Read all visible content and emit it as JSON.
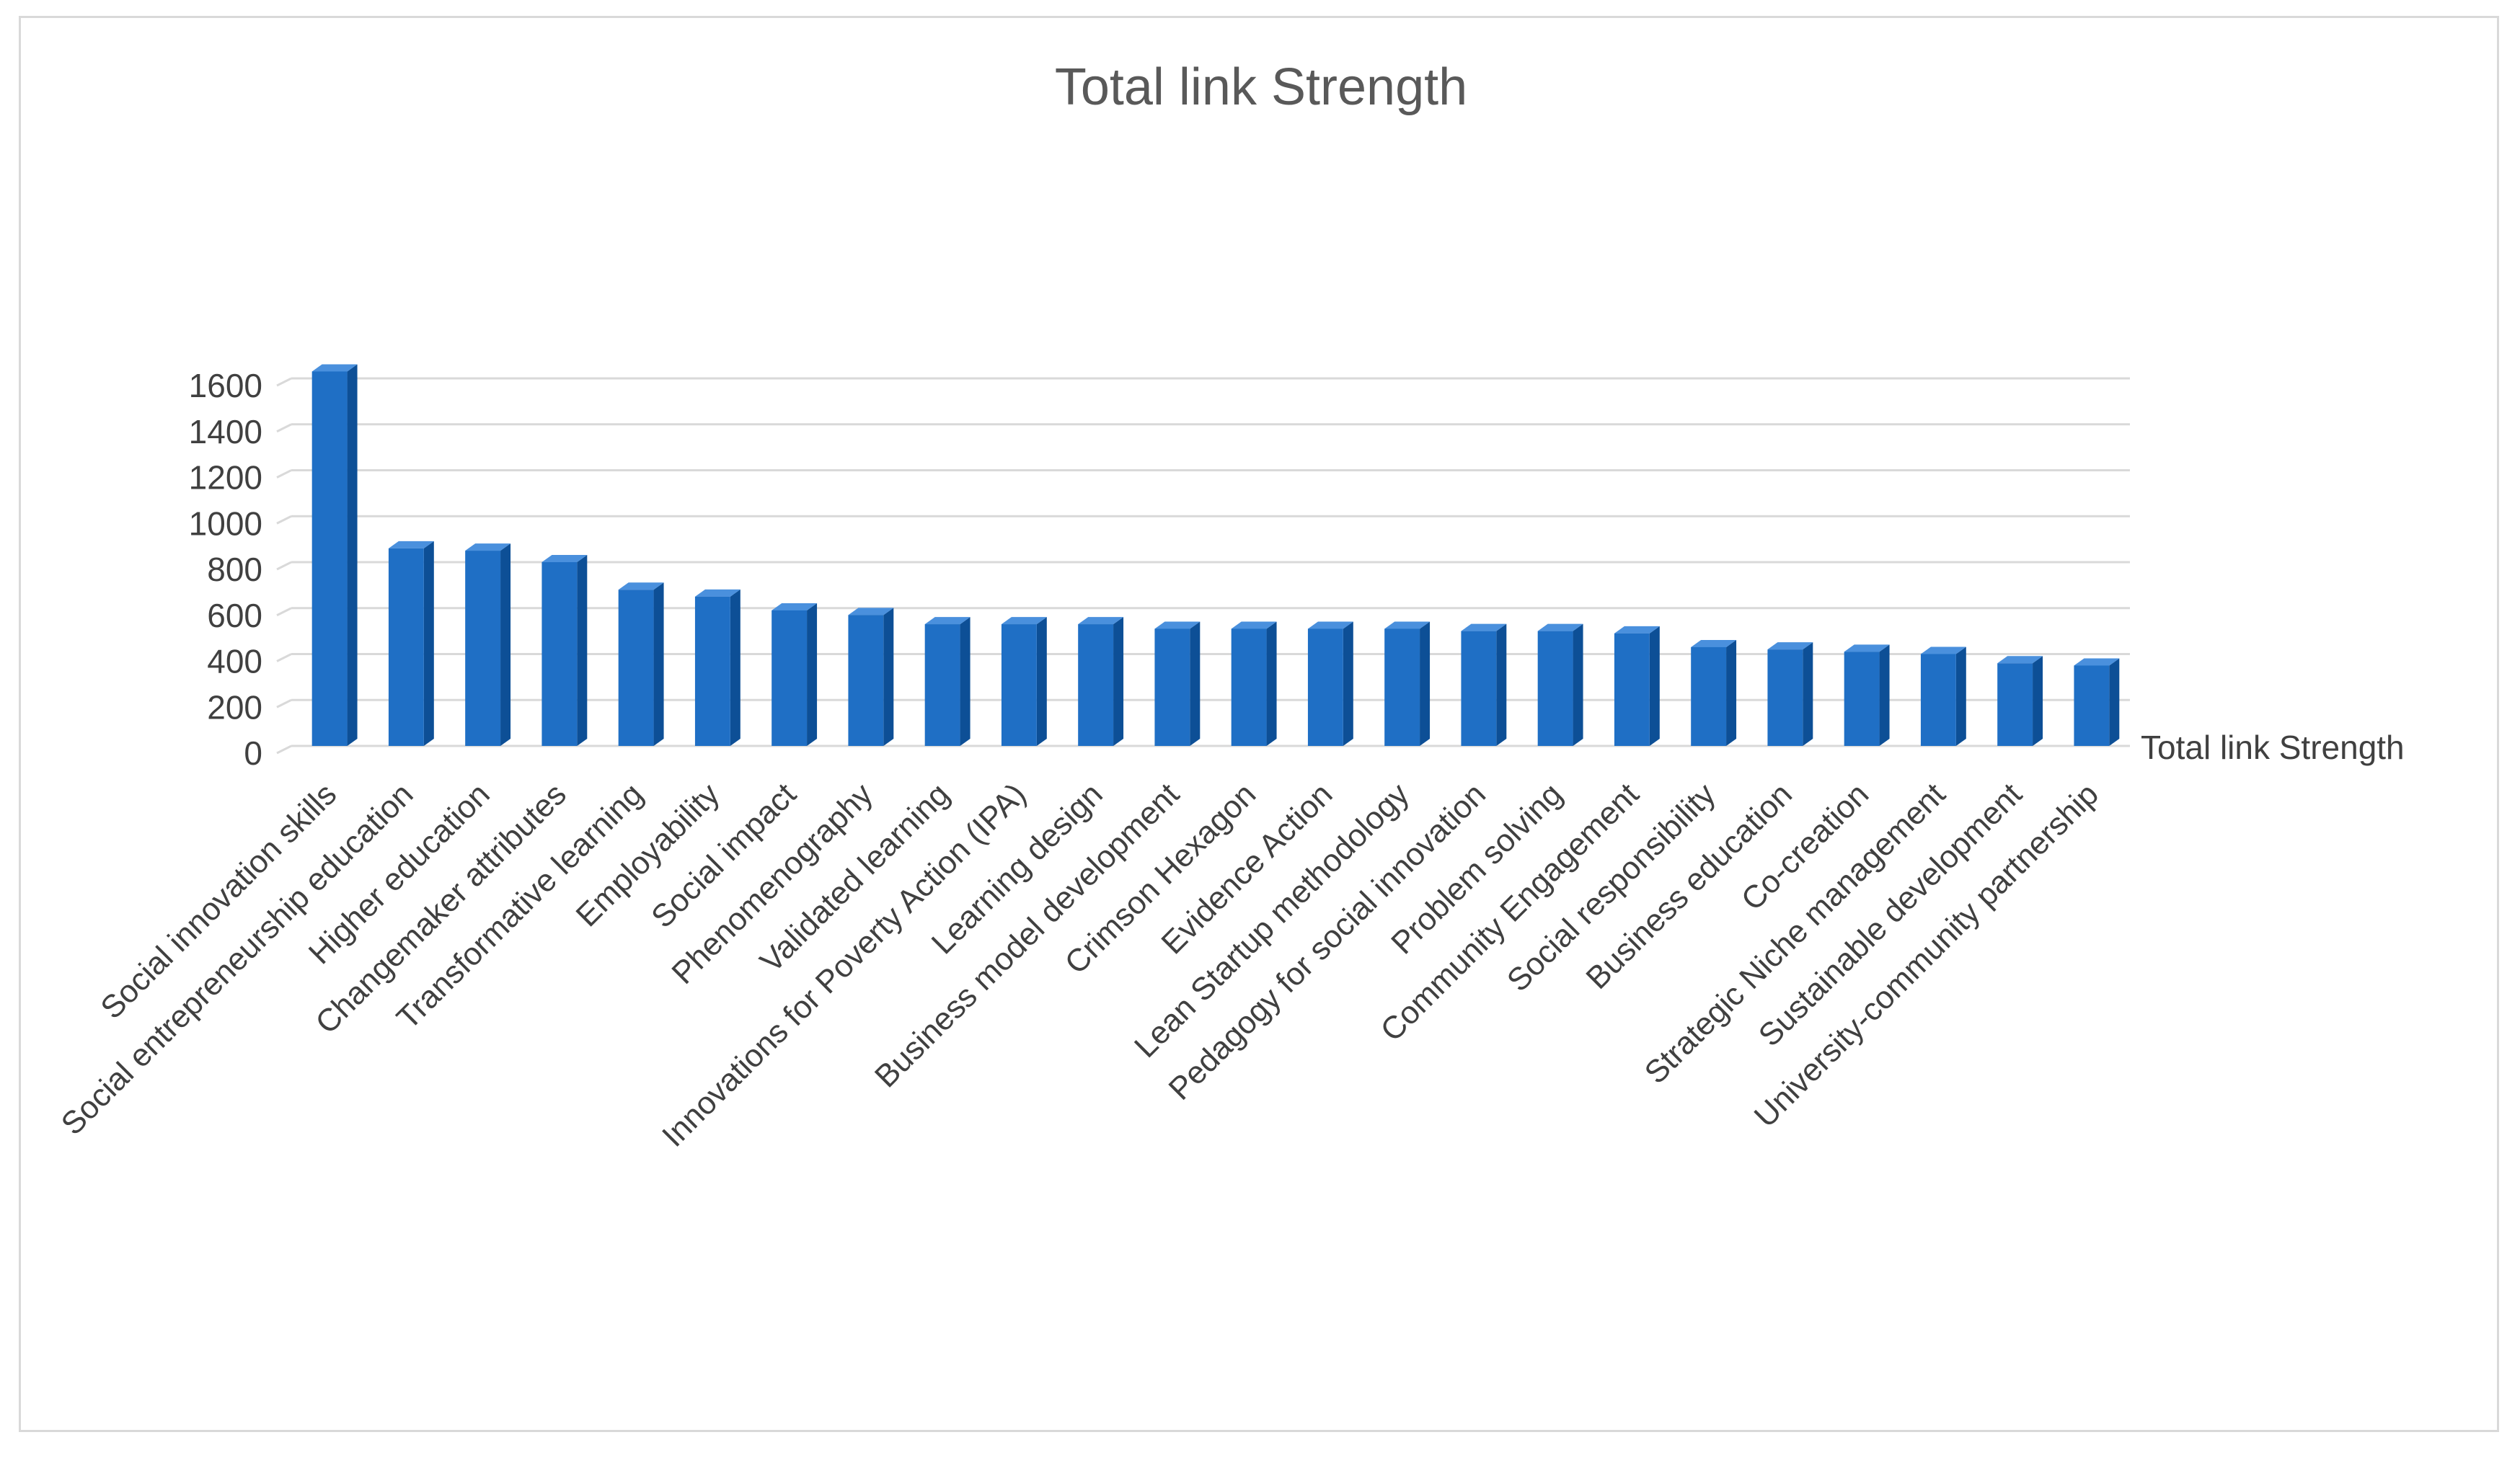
{
  "chart_data": {
    "type": "bar",
    "title": "Total link Strength",
    "xlabel": "",
    "ylabel": "",
    "ylim": [
      0,
      1600
    ],
    "yticks": [
      0,
      200,
      400,
      600,
      800,
      1000,
      1200,
      1400,
      1600
    ],
    "grid": true,
    "legend": "right",
    "categories": [
      "Social innovation skills",
      "Social entrepreneurship education",
      "Higher education",
      "Changemaker attributes",
      "Transformative learning",
      "Employability",
      "Social impact",
      "Phenomenography",
      "Validated learning",
      "Innovations for Poverty Action (IPA)",
      "Learning design",
      "Business model development",
      "Crimson Hexagon",
      "Evidence Action",
      "Lean Startup methodology",
      "Pedagogy for social innovation",
      "Problem solving",
      "Community Engagement",
      "Social responsibility",
      "Business education",
      "Co-creation",
      "Strategic Niche management",
      "Sustainable development",
      "University-community partnership"
    ],
    "series": [
      {
        "name": "Total link Strength",
        "color": "#1f6fc5",
        "values": [
          1630,
          860,
          850,
          800,
          680,
          650,
          590,
          570,
          530,
          530,
          530,
          510,
          510,
          510,
          510,
          500,
          500,
          490,
          430,
          420,
          410,
          400,
          360,
          350
        ]
      }
    ]
  }
}
